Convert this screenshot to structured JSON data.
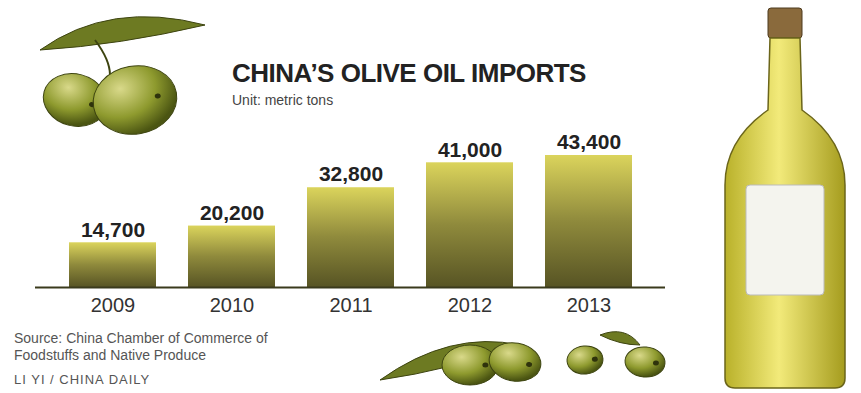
{
  "chart_data": {
    "type": "bar",
    "title": "CHINA’S OLIVE OIL IMPORTS",
    "subtitle": "Unit: metric tons",
    "categories": [
      "2009",
      "2010",
      "2011",
      "2012",
      "2013"
    ],
    "values": [
      14700,
      20200,
      32800,
      41000,
      43400
    ],
    "value_labels": [
      "14,700",
      "20,200",
      "32,800",
      "41,000",
      "43,400"
    ],
    "color": "#8f8a3c",
    "data_labels": true,
    "tick_labels": "x",
    "annotations": [
      "Source: China Chamber of Commerce of Foodstuffs and Native Produce",
      "LI YI / CHINA DAILY"
    ]
  }
}
